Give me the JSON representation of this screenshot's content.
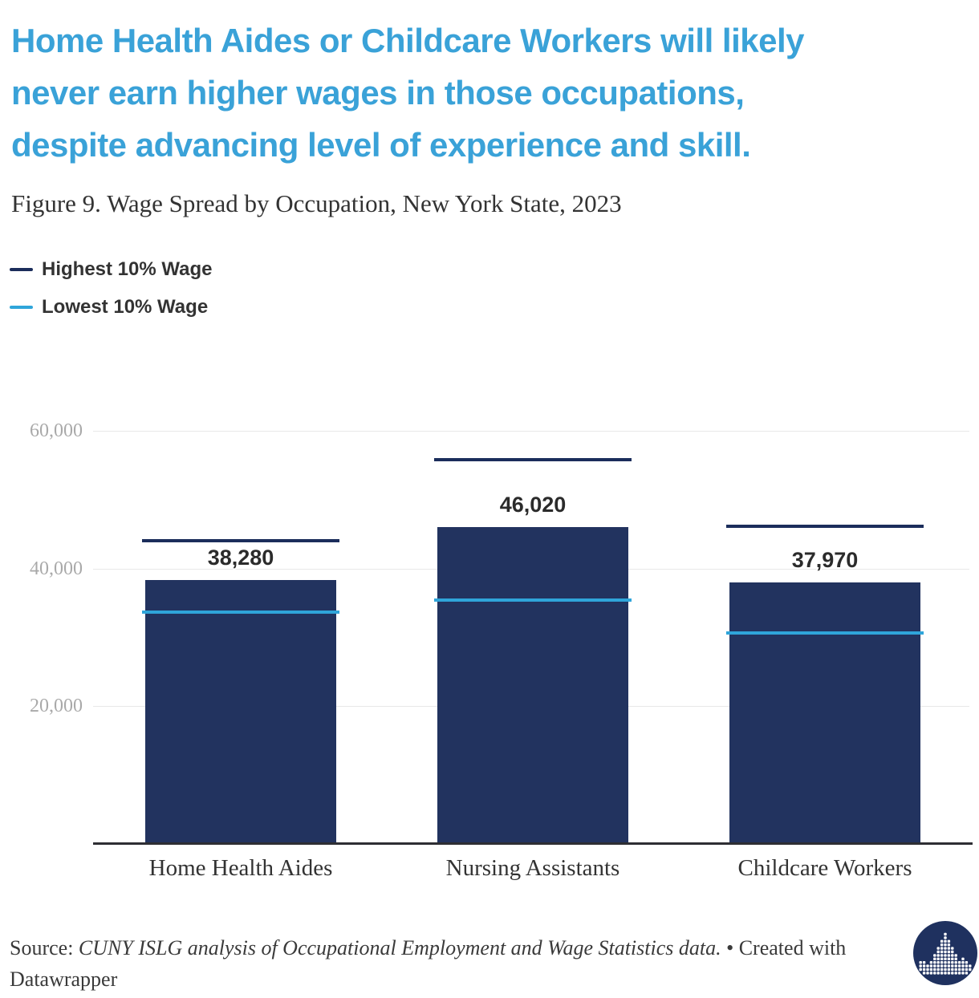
{
  "header": {
    "title_lines": [
      "Home Health Aides or Childcare Workers will likely",
      "never earn higher wages in those occupations,",
      "despite advancing level of experience and skill."
    ],
    "subtitle": "Figure 9. Wage Spread by Occupation, New York State, 2023"
  },
  "legend": {
    "items": [
      {
        "label": "Highest 10% Wage",
        "color": "#1b2d5b"
      },
      {
        "label": "Lowest 10% Wage",
        "color": "#2fa5da"
      }
    ]
  },
  "chart_data": {
    "type": "bar",
    "title": "Wage Spread by Occupation, New York State, 2023",
    "categories": [
      "Home Health Aides",
      "Nursing Assistants",
      "Childcare Workers"
    ],
    "series": [
      {
        "name": "Wage",
        "role": "bar",
        "values": [
          38280,
          46020,
          37970
        ],
        "labels": [
          "38,280",
          "46,020",
          "37,970"
        ],
        "color": "#22335f"
      },
      {
        "name": "Highest 10% Wage",
        "role": "line-marker",
        "values": [
          44000,
          55800,
          46100
        ],
        "estimated": true,
        "color": "#1b2d5b"
      },
      {
        "name": "Lowest 10% Wage",
        "role": "line-marker",
        "values": [
          33600,
          35400,
          30600
        ],
        "estimated": true,
        "color": "#2fa5da"
      }
    ],
    "ylim": [
      0,
      62000
    ],
    "yticks": [
      20000,
      40000,
      60000
    ],
    "ytick_labels": [
      "20,000",
      "40,000",
      "60,000"
    ],
    "grid": "horizontal",
    "legend_position": "top-left"
  },
  "footer": {
    "source_prefix": "Source: ",
    "source_citation": "CUNY ISLG analysis of Occupational Employment and Wage Statistics data.",
    "separator": " • ",
    "credit": "Created with Datawrapper"
  },
  "colors": {
    "title": "#3aa2d8",
    "text": "#333333",
    "tick_label": "#a9a9a9",
    "gridline": "#e8e8e8",
    "axis_line": "#2e2e33",
    "bar": "#22335f",
    "high_line": "#1b2d5b",
    "low_line": "#2fa5da",
    "logo_bg": "#1f315f"
  }
}
